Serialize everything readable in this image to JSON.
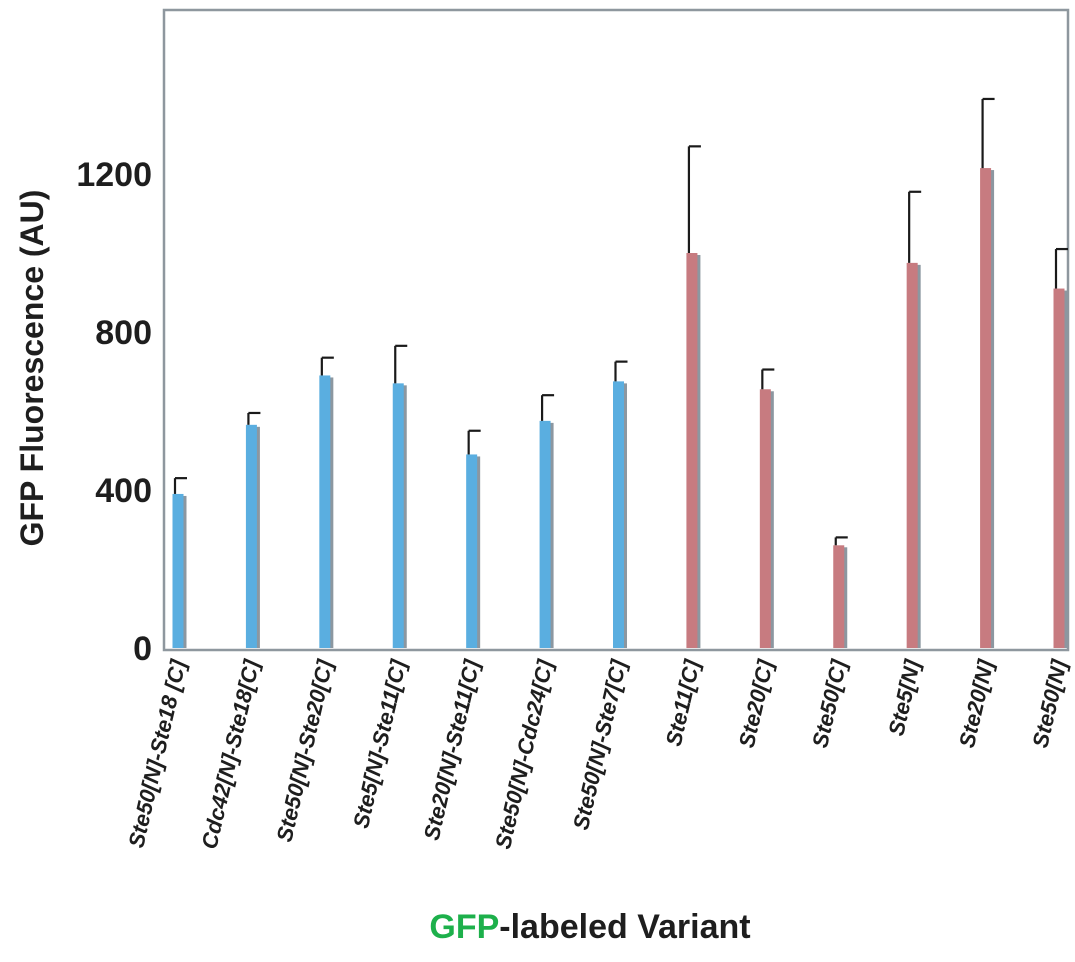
{
  "chart_data": {
    "type": "bar",
    "ylabel": "GFP Fluorescence (AU)",
    "xlabel_highlight": "GFP",
    "xlabel_rest": "-labeled Variant",
    "ylim": [
      0,
      1600
    ],
    "yticks": [
      0,
      400,
      800,
      1200
    ],
    "grid": false,
    "categories": [
      "Ste50[N]-Ste18 [C]",
      "Cdc42[N]-Ste18[C]",
      "Ste50[N]-Ste20[C]",
      "Ste5[N]-Ste11[C]",
      "Ste20[N]-Ste11[C]",
      "Ste50[N]-Cdc24[C]",
      "Ste50[N]-Ste7[C]",
      "Ste11[C]",
      "Ste20[C]",
      "Ste50[C]",
      "Ste5[N]",
      "Ste20[N]",
      "Ste50[N]"
    ],
    "values": [
      390,
      565,
      690,
      670,
      490,
      575,
      675,
      1000,
      655,
      260,
      975,
      1215,
      910
    ],
    "errors": [
      40,
      30,
      45,
      95,
      60,
      65,
      50,
      270,
      50,
      20,
      180,
      175,
      100
    ],
    "bar_colors": [
      "#5aaee0",
      "#5aaee0",
      "#5aaee0",
      "#5aaee0",
      "#5aaee0",
      "#5aaee0",
      "#5aaee0",
      "#c77b80",
      "#c77b80",
      "#c77b80",
      "#c77b80",
      "#c77b80",
      "#c77b80"
    ],
    "colors": {
      "bar_single": "#5aaee0",
      "bar_fragment": "#c77b80",
      "shadow": "#8c97a0",
      "frame": "#8e979e",
      "gfp_text": "#1db04b",
      "text": "#1e1e1e"
    }
  }
}
